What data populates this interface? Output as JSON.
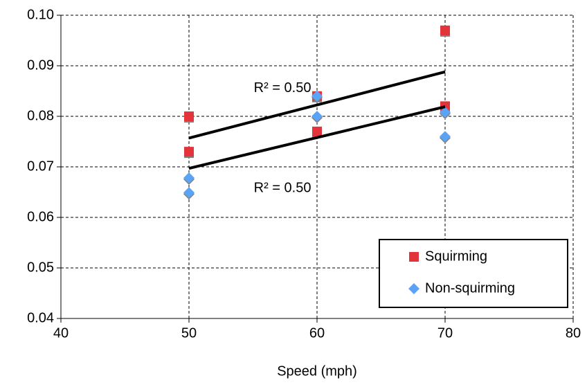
{
  "chart_data": {
    "type": "scatter",
    "xlabel": "Speed (mph)",
    "xlim": [
      40,
      80
    ],
    "xticks": [
      40,
      50,
      60,
      70,
      80
    ],
    "ylim": [
      0.04,
      0.1
    ],
    "yticks": [
      {
        "value": 0.04,
        "label": "0.04"
      },
      {
        "value": 0.05,
        "label": "0.05"
      },
      {
        "value": 0.06,
        "label": "0.06"
      },
      {
        "value": 0.07,
        "label": "0.07"
      },
      {
        "value": 0.08,
        "label": "0.08"
      },
      {
        "value": 0.09,
        "label": "0.09"
      },
      {
        "value": 0.1,
        "label": "0.10"
      }
    ],
    "grid": true,
    "legend": "lower right",
    "series": [
      {
        "name": "Squirming",
        "color": "#e3333b",
        "marker": "square",
        "x": [
          50,
          50,
          60,
          60,
          70,
          70
        ],
        "values": [
          0.08,
          0.073,
          0.084,
          0.077,
          0.097,
          0.082
        ],
        "trend_x": [
          50,
          70
        ],
        "trend_values": [
          0.0757,
          0.0888
        ]
      },
      {
        "name": "Non-squirming",
        "color": "#5ba3f5",
        "marker": "diamond",
        "x": [
          50,
          50,
          60,
          60,
          70,
          70
        ],
        "values": [
          0.0678,
          0.0649,
          0.084,
          0.08,
          0.0808,
          0.076
        ],
        "trend_x": [
          50,
          70
        ],
        "trend_values": [
          0.0697,
          0.0819
        ]
      }
    ],
    "annotations": [
      {
        "text": "R² = 0.50",
        "x": 57.3,
        "y": 0.0855
      },
      {
        "text": "R² = 0.50",
        "x": 57.3,
        "y": 0.0657
      }
    ]
  }
}
